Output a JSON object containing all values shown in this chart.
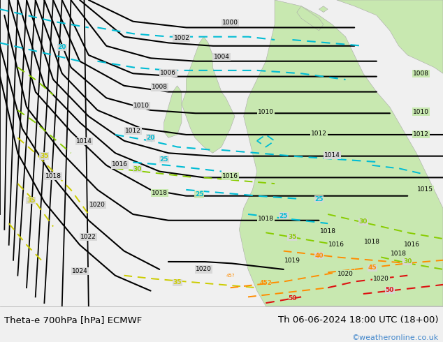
{
  "title_left": "Theta-e 700hPa [hPa] ECMWF",
  "title_right": "Th 06-06-2024 18:00 UTC (18+00)",
  "copyright": "©weatheronline.co.uk",
  "ocean_color": "#d8d8d8",
  "land_color": "#c8e8b0",
  "land_border_color": "#aaaaaa",
  "bottom_bar_color": "#f0f0f0",
  "copyright_color": "#4488cc",
  "figsize": [
    6.34,
    4.9
  ],
  "dpi": 100
}
